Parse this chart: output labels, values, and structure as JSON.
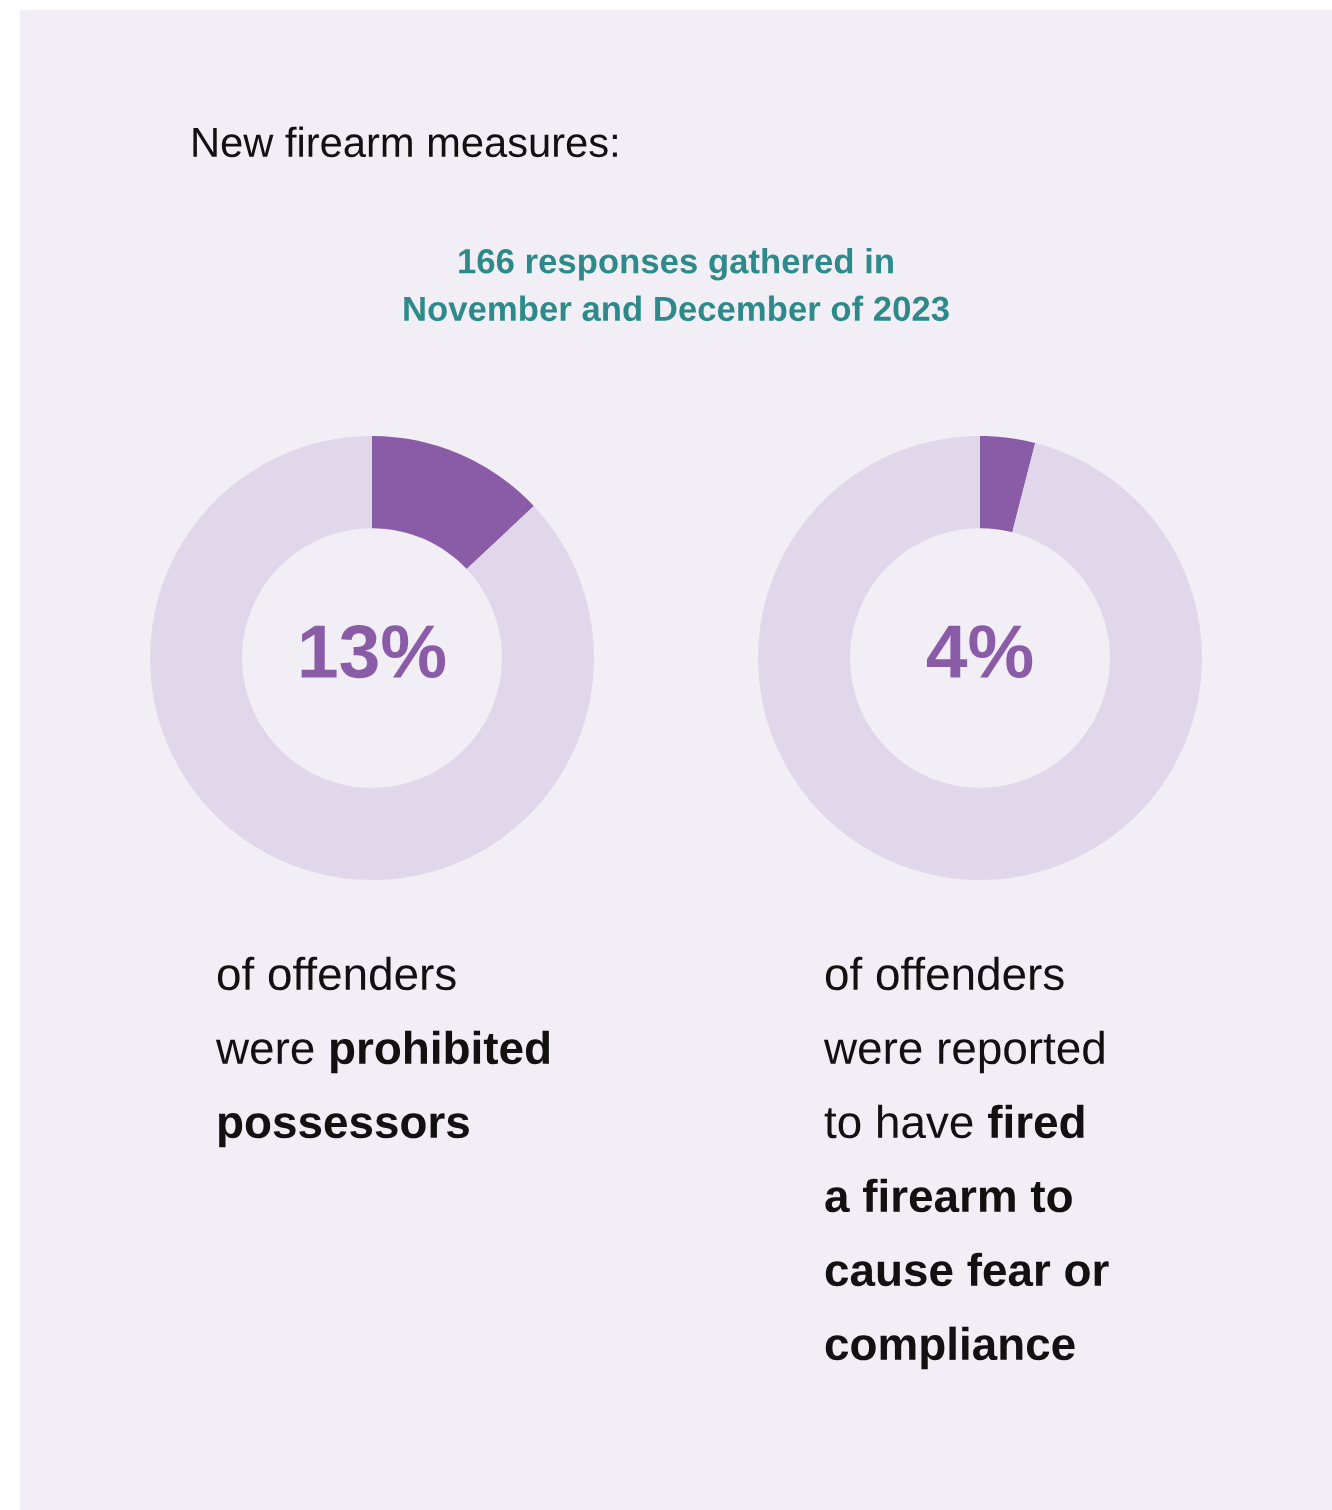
{
  "chart_data": [
    {
      "type": "donut",
      "title": "New firearm measures:",
      "subtitle": "166 responses gathered in\nNovember and December of 2023",
      "categories": [
        null,
        null
      ],
      "values": [
        13,
        87
      ],
      "colors": [
        "#8a5ca8",
        "#e0d8ea"
      ],
      "value_labels": [
        "13%",
        null
      ],
      "annotations": [
        "of offenders\nwere ",
        "prohibited\npossessors"
      ]
    },
    {
      "type": "donut",
      "categories": [
        null,
        null
      ],
      "values": [
        4,
        96
      ],
      "colors": [
        "#8a5ca8",
        "#e0d8ea"
      ],
      "value_labels": [
        "4%",
        null
      ],
      "annotations": [
        "of offenders\nwere reported\nto have ",
        "fired\na firearm to\ncause fear or\ncompliance"
      ]
    }
  ]
}
